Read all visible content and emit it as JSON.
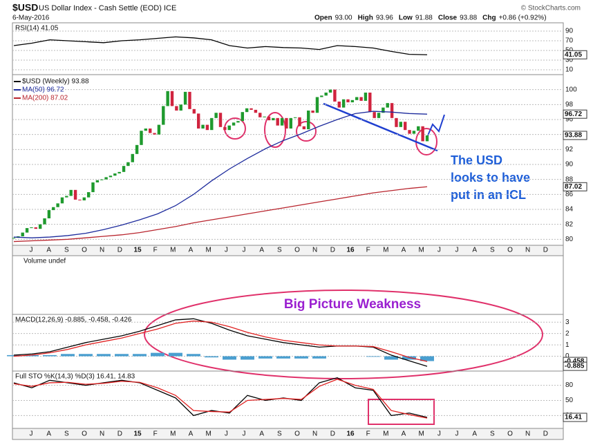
{
  "header": {
    "symbol": "$USD",
    "name": "US Dollar Index - Cash Settle (EOD) ICE",
    "date": "6-May-2016",
    "credit": "© StockCharts.com",
    "quote": [
      {
        "label": "Open",
        "value": "93.00"
      },
      {
        "label": "High",
        "value": "93.96"
      },
      {
        "label": "Low",
        "value": "91.88"
      },
      {
        "label": "Close",
        "value": "93.88"
      },
      {
        "label": "Chg",
        "value": "+0.86 (+0.92%)"
      }
    ],
    "volume_label": "Volume undef"
  },
  "x_axis": {
    "labels": [
      "J",
      "A",
      "S",
      "O",
      "N",
      "D",
      "15",
      "F",
      "M",
      "A",
      "M",
      "J",
      "J",
      "A",
      "S",
      "O",
      "N",
      "D",
      "16",
      "F",
      "M",
      "A",
      "M",
      "J",
      "J",
      "A",
      "S",
      "O",
      "N",
      "D"
    ]
  },
  "annotations": {
    "icl": [
      "The USD",
      "looks to have",
      "put in an ICL"
    ],
    "weakness": "Big Picture Weakness"
  },
  "chart_data": [
    {
      "type": "line",
      "title": "RSI(14) 41.05",
      "ylim": [
        0,
        100
      ],
      "yticks": [
        10,
        30,
        50,
        70,
        90
      ],
      "current_labels": [
        {
          "value": 41.05,
          "label": "41.05"
        }
      ],
      "series": [
        {
          "color": "#000000",
          "values": [
            60,
            65,
            72,
            70,
            68,
            66,
            70,
            72,
            75,
            78,
            76,
            72,
            60,
            55,
            58,
            56,
            55,
            52,
            60,
            58,
            55,
            48,
            42,
            41.05
          ]
        }
      ]
    },
    {
      "type": "candlestick",
      "ylim": [
        79.2,
        102
      ],
      "yticks": [
        80,
        82,
        84,
        86,
        88,
        90,
        92,
        94,
        96,
        98,
        100
      ],
      "current_labels": [
        {
          "value": 96.72,
          "label": "96.72"
        },
        {
          "value": 93.88,
          "label": "93.88"
        },
        {
          "value": 87.02,
          "label": "87.02"
        }
      ],
      "up_color": "#1f9a2e",
      "down_color": "#d0243f",
      "series": [
        {
          "name": "$USD (Weekly) 93.88",
          "kind": "candle",
          "color": "#000000",
          "values": [
            80.2,
            80.4,
            80.9,
            81.5,
            81.6,
            81.4,
            82.0,
            82.8,
            83.9,
            84.3,
            84.8,
            85.6,
            85.8,
            86.6,
            85.3,
            85.2,
            85.6,
            86.3,
            87.6,
            87.9,
            88.0,
            88.3,
            88.5,
            88.8,
            89.0,
            89.8,
            90.3,
            91.4,
            92.6,
            94.5,
            94.8,
            94.2,
            94.0,
            95.3,
            97.8,
            99.8,
            97.8,
            97.2,
            98.0,
            99.7,
            97.4,
            96.8,
            94.8,
            95.3,
            94.6,
            96.2,
            96.9,
            95.0,
            94.6,
            95.2,
            95.6,
            95.8,
            97.0,
            97.5,
            97.3,
            96.9,
            96.3,
            96.4,
            95.9,
            96.2,
            95.2,
            96.2,
            94.8,
            96.2,
            96.3,
            95.1,
            94.7,
            97.2,
            96.9,
            99.0,
            99.2,
            99.6,
            100.0,
            98.4,
            97.6,
            98.7,
            98.3,
            98.6,
            99.0,
            98.5,
            99.6,
            97.0,
            96.2,
            96.9,
            97.6,
            98.2,
            96.2,
            95.0,
            95.7,
            94.6,
            94.1,
            94.5,
            95.1,
            93.1,
            93.88
          ]
        },
        {
          "name": "MA(50) 96.72",
          "kind": "line",
          "color": "#1c2a9c",
          "values": [
            80.3,
            80.2,
            80.3,
            80.5,
            80.8,
            81.3,
            81.9,
            82.6,
            83.4,
            84.5,
            86.0,
            87.8,
            89.4,
            90.8,
            92.1,
            93.2,
            94.1,
            95.1,
            96.0,
            96.8,
            97.1,
            97.0,
            96.8,
            96.72
          ]
        },
        {
          "name": "MA(200) 87.02",
          "kind": "line",
          "color": "#b8232c",
          "values": [
            79.7,
            79.8,
            79.9,
            80.0,
            80.2,
            80.4,
            80.6,
            80.9,
            81.3,
            81.7,
            82.2,
            82.6,
            83.0,
            83.4,
            83.8,
            84.2,
            84.6,
            85.0,
            85.4,
            85.8,
            86.2,
            86.5,
            86.8,
            87.02
          ]
        }
      ]
    },
    {
      "type": "line",
      "title": "MACD(12,26,9) -0.885, -0.458, -0.426",
      "ylim": [
        -1,
        3.5
      ],
      "yticks": [
        0,
        1,
        2,
        3
      ],
      "current_labels": [
        {
          "value": -0.458,
          "label": "-0.458"
        },
        {
          "value": -0.885,
          "label": "-0.885"
        }
      ],
      "series": [
        {
          "kind": "bar",
          "color": "#4a9fd0",
          "values": [
            0.1,
            0.1,
            0.1,
            0.2,
            0.2,
            0.2,
            0.2,
            0.2,
            0.3,
            0.3,
            0.2,
            -0.1,
            -0.3,
            -0.3,
            -0.2,
            -0.2,
            -0.2,
            -0.2,
            0.0,
            0.0,
            -0.05,
            -0.3,
            -0.3,
            -0.426
          ]
        },
        {
          "kind": "line",
          "color": "#000000",
          "values": [
            0.1,
            0.2,
            0.4,
            0.8,
            1.2,
            1.5,
            1.8,
            2.2,
            2.7,
            3.2,
            3.3,
            2.9,
            2.3,
            1.8,
            1.5,
            1.2,
            1.0,
            0.8,
            0.9,
            0.9,
            0.8,
            0.1,
            -0.4,
            -0.885
          ]
        },
        {
          "kind": "line",
          "color": "#e02020",
          "values": [
            0.0,
            0.1,
            0.3,
            0.6,
            1.0,
            1.3,
            1.6,
            2.0,
            2.4,
            2.9,
            3.1,
            3.0,
            2.6,
            2.1,
            1.7,
            1.4,
            1.2,
            1.0,
            0.9,
            0.9,
            0.85,
            0.4,
            -0.1,
            -0.458
          ]
        }
      ]
    },
    {
      "type": "line",
      "title": "Full STO %K(14,3) %D(3) 16.41, 14.83",
      "ylim": [
        0,
        100
      ],
      "yticks": [
        20,
        50,
        80
      ],
      "current_labels": [
        {
          "value": 16.41,
          "label": "16.41"
        }
      ],
      "series": [
        {
          "kind": "line",
          "color": "#000000",
          "values": [
            85,
            75,
            90,
            85,
            80,
            85,
            90,
            85,
            70,
            55,
            20,
            30,
            25,
            60,
            50,
            55,
            50,
            85,
            95,
            75,
            70,
            20,
            25,
            16.41
          ]
        },
        {
          "kind": "line",
          "color": "#e02020",
          "values": [
            83,
            78,
            85,
            86,
            82,
            84,
            88,
            86,
            75,
            60,
            30,
            28,
            27,
            50,
            52,
            54,
            52,
            78,
            92,
            80,
            72,
            30,
            22,
            14.83
          ]
        }
      ]
    }
  ]
}
